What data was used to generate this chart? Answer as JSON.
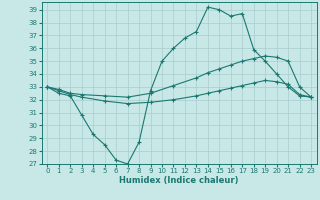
{
  "title": "",
  "xlabel": "Humidex (Indice chaleur)",
  "ylabel": "",
  "bg_color": "#c8e8e8",
  "line_color": "#1a7870",
  "grid_color": "#a8cccc",
  "xlim": [
    -0.5,
    23.5
  ],
  "ylim": [
    27,
    39.6
  ],
  "yticks": [
    27,
    28,
    29,
    30,
    31,
    32,
    33,
    34,
    35,
    36,
    37,
    38,
    39
  ],
  "xticks": [
    0,
    1,
    2,
    3,
    4,
    5,
    6,
    7,
    8,
    9,
    10,
    11,
    12,
    13,
    14,
    15,
    16,
    17,
    18,
    19,
    20,
    21,
    22,
    23
  ],
  "line1_x": [
    0,
    1,
    2,
    3,
    4,
    5,
    6,
    7,
    8,
    9,
    10,
    11,
    12,
    13,
    14,
    15,
    16,
    17,
    18,
    19,
    20,
    21,
    22,
    23
  ],
  "line1_y": [
    33.0,
    32.5,
    32.3,
    30.8,
    29.3,
    28.5,
    27.3,
    27.0,
    28.7,
    32.7,
    35.0,
    36.0,
    36.8,
    37.3,
    39.2,
    39.0,
    38.5,
    38.7,
    35.9,
    35.0,
    34.0,
    33.0,
    32.3,
    32.2
  ],
  "line1_markers": [
    0,
    1,
    2,
    3,
    4,
    5,
    6,
    7,
    8,
    9,
    10,
    11,
    12,
    13,
    14,
    15,
    16,
    17,
    18,
    19,
    20,
    21,
    22,
    23
  ],
  "line2_x": [
    0,
    1,
    2,
    3,
    5,
    7,
    9,
    11,
    13,
    14,
    15,
    16,
    17,
    18,
    19,
    20,
    21,
    22,
    23
  ],
  "line2_y": [
    33.0,
    32.8,
    32.5,
    32.4,
    32.3,
    32.2,
    32.5,
    33.1,
    33.7,
    34.1,
    34.4,
    34.7,
    35.0,
    35.2,
    35.4,
    35.3,
    35.0,
    33.0,
    32.2
  ],
  "line3_x": [
    0,
    1,
    2,
    3,
    5,
    7,
    9,
    11,
    13,
    14,
    15,
    16,
    17,
    18,
    19,
    20,
    21,
    22,
    23
  ],
  "line3_y": [
    33.0,
    32.7,
    32.4,
    32.2,
    31.9,
    31.7,
    31.8,
    32.0,
    32.3,
    32.5,
    32.7,
    32.9,
    33.1,
    33.3,
    33.5,
    33.4,
    33.2,
    32.4,
    32.2
  ]
}
